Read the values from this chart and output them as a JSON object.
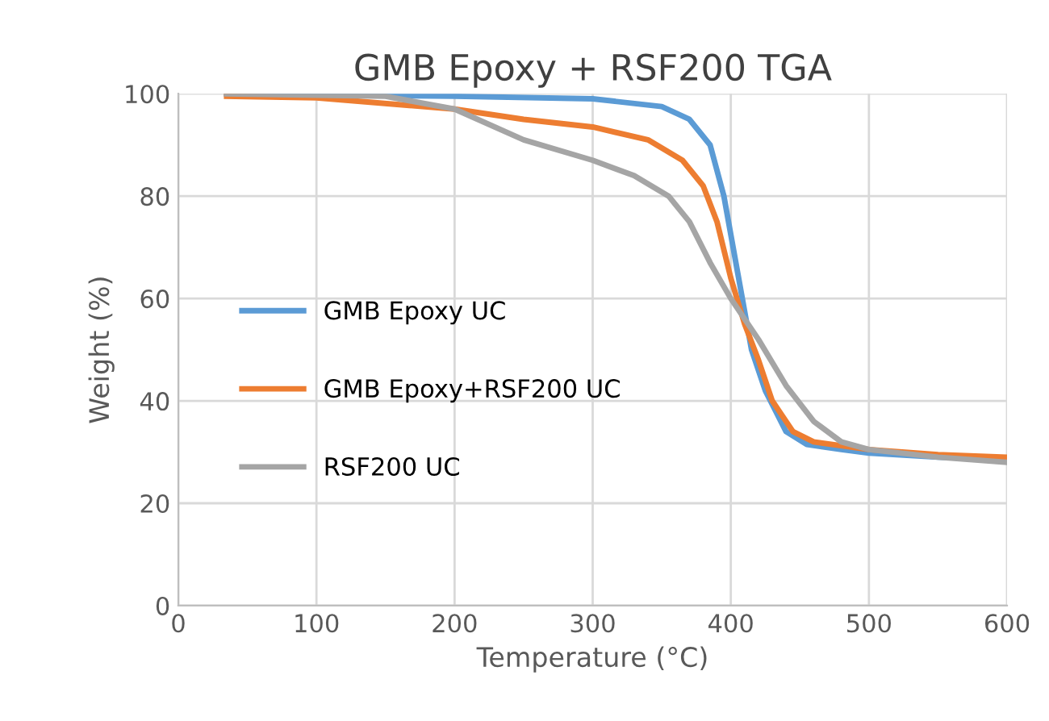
{
  "chart_data": {
    "type": "line",
    "title": "GMB Epoxy + RSF200 TGA",
    "xlabel": "Temperature (°C)",
    "ylabel": "Weight (%)",
    "xlim": [
      0,
      600
    ],
    "xticks": [
      0,
      100,
      200,
      300,
      400,
      500,
      600
    ],
    "ylim": [
      0,
      100
    ],
    "yticks": [
      0,
      20,
      40,
      60,
      80,
      100
    ],
    "grid": true,
    "legend": "left",
    "marker": "none",
    "line_style": "solid",
    "series": [
      {
        "name": "GMB Epoxy UC",
        "color": "#5b9bd5",
        "x": [
          35,
          100,
          200,
          300,
          350,
          370,
          385,
          395,
          405,
          415,
          425,
          440,
          455,
          480,
          500,
          550,
          600
        ],
        "values": [
          100,
          99.8,
          99.5,
          99,
          97.5,
          95,
          90,
          80,
          65,
          50,
          42,
          34,
          31.5,
          30.5,
          29.8,
          29,
          28.5
        ]
      },
      {
        "name": "GMB Epoxy+RSF200 UC",
        "color": "#ed7d31",
        "x": [
          35,
          100,
          200,
          250,
          300,
          340,
          365,
          380,
          390,
          400,
          410,
          420,
          430,
          445,
          460,
          500,
          550,
          600
        ],
        "values": [
          99.5,
          99.2,
          97,
          95,
          93.5,
          91,
          87,
          82,
          75,
          64,
          55,
          48,
          40,
          34,
          32,
          30.5,
          29.5,
          29
        ]
      },
      {
        "name": "RSF200 UC",
        "color": "#a5a5a5",
        "x": [
          35,
          150,
          200,
          250,
          300,
          330,
          355,
          370,
          385,
          400,
          420,
          440,
          460,
          480,
          500,
          550,
          600
        ],
        "values": [
          100,
          99.5,
          97,
          91,
          87,
          84,
          80,
          75,
          67,
          60,
          52,
          43,
          36,
          32,
          30.5,
          29,
          28
        ]
      }
    ]
  }
}
